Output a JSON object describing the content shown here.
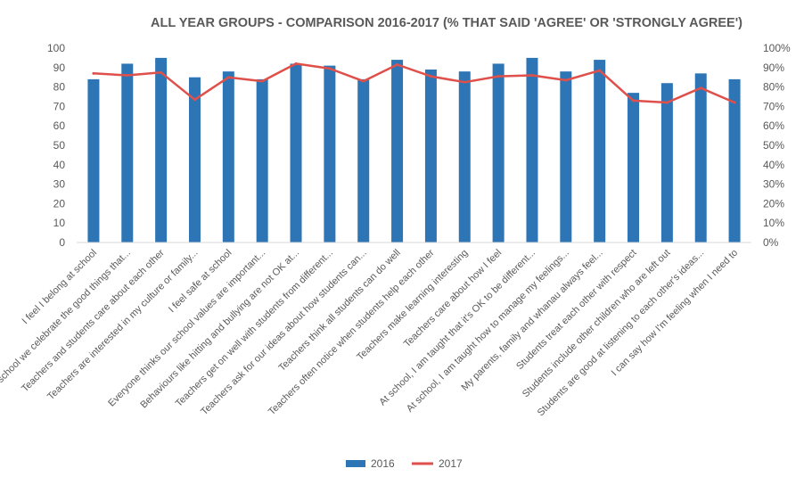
{
  "chart_data": {
    "type": "bar",
    "title": "ALL YEAR GROUPS - COMPARISON 2016-2017 (% THAT SAID 'AGREE' OR 'STRONGLY AGREE')",
    "categories": [
      "I feel I belong at school",
      "At school we celebrate the good things that...",
      "Teachers and students care about each other",
      "Teachers are interested in my culture or family...",
      "I feel safe at school",
      "Everyone thinks our school values are important...",
      "Behaviours like hitting and bullying are not OK at...",
      "Teachers get on well with students from different...",
      "Teachers ask for our ideas about how students can...",
      "Teachers think all students can do well",
      "Teachers often notice when students help each other",
      "Teachers make learning interesting",
      "Teachers care about how I feel",
      "At school, I am taught that it's OK to be different...",
      "At school, I am taught how to manage my feelings...",
      "My parents, family and whanau always feel...",
      "Students treat each other with respect",
      "Students include other children who are left out",
      "Students are good at listening to each other's ideas...",
      "I can say how I'm feeling when I need to"
    ],
    "series": [
      {
        "name": "2016",
        "kind": "bar",
        "axis": "left",
        "color": "#2E75B6",
        "values": [
          84,
          92,
          95,
          85,
          88,
          84,
          92,
          91,
          84,
          94,
          89,
          88,
          92,
          95,
          88,
          94,
          77,
          82,
          87,
          84
        ]
      },
      {
        "name": "2017",
        "kind": "line",
        "axis": "right",
        "color": "#E0504A",
        "values": [
          0.87,
          0.86,
          0.875,
          0.735,
          0.85,
          0.83,
          0.92,
          0.895,
          0.83,
          0.915,
          0.855,
          0.825,
          0.855,
          0.86,
          0.835,
          0.885,
          0.73,
          0.72,
          0.795,
          0.72
        ]
      }
    ],
    "ylim": [
      0,
      100
    ],
    "yticks": [
      "0",
      "10",
      "20",
      "30",
      "40",
      "50",
      "60",
      "70",
      "80",
      "90",
      "100"
    ],
    "y2lim": [
      0,
      1
    ],
    "y2ticks": [
      "0%",
      "10%",
      "20%",
      "30%",
      "40%",
      "50%",
      "60%",
      "70%",
      "80%",
      "90%",
      "100%"
    ],
    "grid": false,
    "legend": "bottom"
  }
}
